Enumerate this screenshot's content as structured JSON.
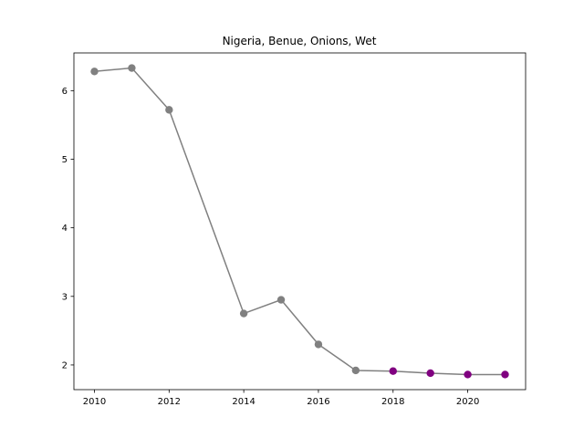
{
  "chart_data": {
    "type": "line",
    "title": "Nigeria, Benue, Onions, Wet",
    "xlabel": "",
    "ylabel": "",
    "x": [
      2010,
      2011,
      2012,
      2014,
      2015,
      2016,
      2017,
      2018,
      2019,
      2020,
      2021
    ],
    "values": [
      6.28,
      6.33,
      5.72,
      2.75,
      2.95,
      2.3,
      1.92,
      1.91,
      1.88,
      1.86,
      1.86
    ],
    "point_colors": [
      "#808080",
      "#808080",
      "#808080",
      "#808080",
      "#808080",
      "#808080",
      "#808080",
      "#800080",
      "#800080",
      "#800080",
      "#800080"
    ],
    "line_color": "#808080",
    "xlim": [
      2009.45,
      2021.55
    ],
    "ylim": [
      1.64,
      6.55
    ],
    "xticks": [
      2010,
      2012,
      2014,
      2016,
      2018,
      2020
    ],
    "yticks": [
      2,
      3,
      4,
      5,
      6
    ],
    "grid": false,
    "legend": "none"
  }
}
